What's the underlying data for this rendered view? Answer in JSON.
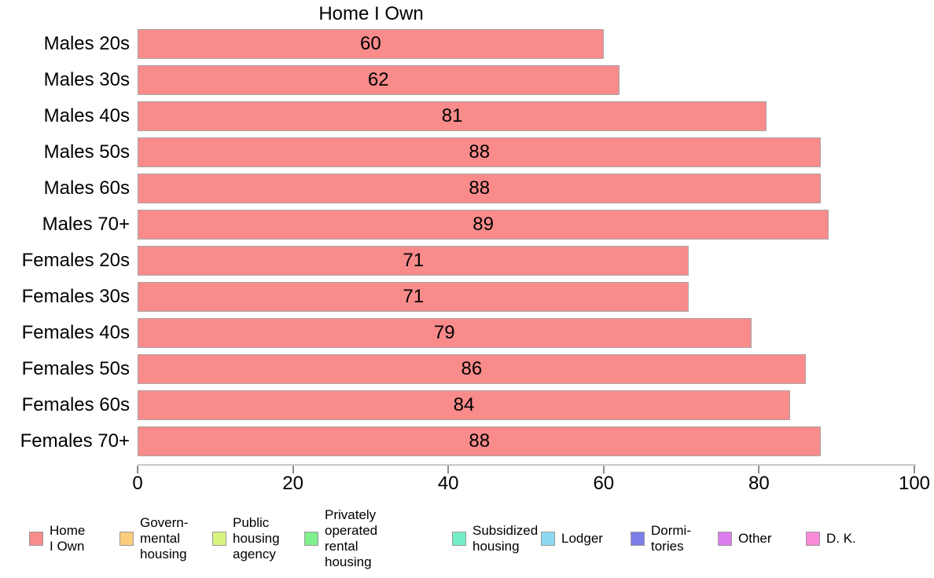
{
  "chart_data": {
    "type": "bar",
    "orientation": "horizontal",
    "title": "Home I Own",
    "categories": [
      "Males 20s",
      "Males 30s",
      "Males 40s",
      "Males 50s",
      "Males 60s",
      "Males 70+",
      "Females 20s",
      "Females 30s",
      "Females 40s",
      "Females 50s",
      "Females 60s",
      "Females 70+"
    ],
    "values": [
      60,
      62,
      81,
      88,
      88,
      89,
      71,
      71,
      79,
      86,
      84,
      88
    ],
    "value_labels_shown": true,
    "xlim": [
      0,
      100
    ],
    "x_ticks": [
      "0",
      "20",
      "40",
      "60",
      "80",
      "100"
    ],
    "x_tick_values": [
      0,
      20,
      40,
      60,
      80,
      100
    ],
    "grid": false,
    "bar_color": "#F98B8B",
    "bar_border_color": "#A6A6A6",
    "legend_position": "bottom",
    "legend": [
      {
        "name": "home-i-own",
        "label": "Home\nI Own",
        "color": "#F98B8B"
      },
      {
        "name": "governmental-housing",
        "label": "Govern-\nmental\n housing",
        "color": "#FACC7C"
      },
      {
        "name": "public-housing-agency",
        "label": "Public\nhousing\nagency",
        "color": "#D7F47E"
      },
      {
        "name": "privately-operated-rental-housing",
        "label": "Privately\noperated\nrental\nhousing",
        "color": "#7FEE8D"
      },
      {
        "name": "subsidized-housing",
        "label": "Subsidized\n housing",
        "color": "#74EEC9"
      },
      {
        "name": "lodger",
        "label": "Lodger",
        "color": "#8CD9F2"
      },
      {
        "name": "dormitories",
        "label": "Dormi-\ntories",
        "color": "#7C7CE9"
      },
      {
        "name": "other",
        "label": "Other",
        "color": "#DC7DEE"
      },
      {
        "name": "d-k",
        "label": "D. K.",
        "color": "#FA8BD8"
      }
    ]
  }
}
